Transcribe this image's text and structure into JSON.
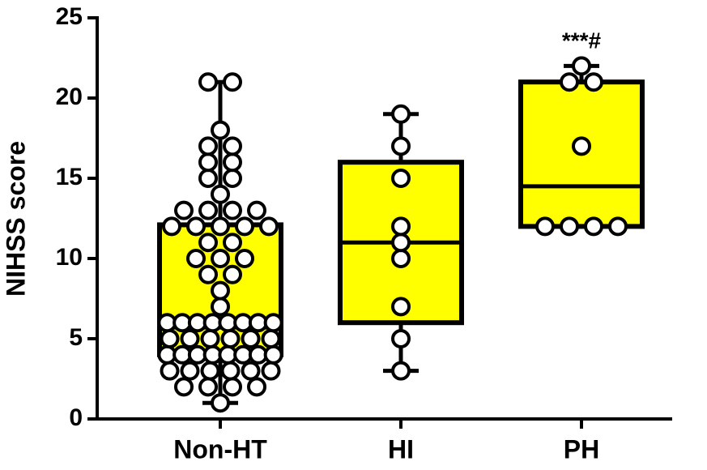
{
  "chart_data": {
    "type": "box",
    "y_label": "NIHSS score",
    "categories": [
      "Non-HT",
      "HI",
      "PH"
    ],
    "annotations": [
      {
        "category": 2,
        "text": "***#"
      }
    ],
    "box_color": "#ffff00",
    "point_color": "#ffffff",
    "ylim": [
      0,
      25
    ],
    "yticks": [
      0,
      5,
      10,
      15,
      20,
      25
    ],
    "boxes": [
      {
        "min": 1,
        "q1": 4,
        "median": 5.7,
        "q3": 12.1,
        "max": 21
      },
      {
        "min": 3,
        "q1": 6,
        "median": 11,
        "q3": 16,
        "max": 19
      },
      {
        "min": 12,
        "q1": 12,
        "median": 14.5,
        "q3": 21,
        "max": 22
      }
    ],
    "points": [
      [
        21,
        21,
        18,
        17,
        17,
        16,
        16,
        15,
        15,
        14,
        13,
        13,
        13,
        13,
        12,
        12,
        12,
        12,
        12,
        11,
        11,
        10,
        10,
        10,
        9,
        9,
        8,
        7,
        6,
        6,
        6,
        6,
        6,
        6,
        6,
        6,
        5,
        5,
        5,
        5,
        5,
        5,
        4,
        4,
        4,
        4,
        4,
        4,
        4,
        4,
        3,
        3,
        3,
        3,
        3,
        3,
        2,
        2,
        2,
        2,
        1
      ],
      [
        19,
        17,
        15,
        12,
        11,
        10,
        7,
        5,
        3
      ],
      [
        22,
        21,
        21,
        17,
        12,
        12,
        12,
        12
      ]
    ]
  }
}
